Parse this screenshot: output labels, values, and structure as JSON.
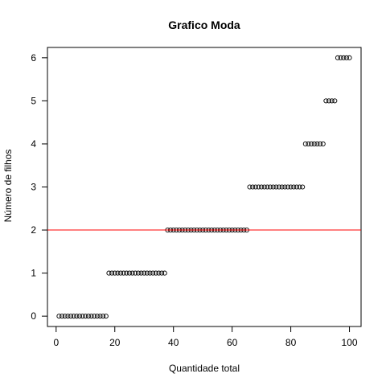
{
  "chart_data": {
    "type": "scatter",
    "title": "Grafico Moda",
    "xlabel": "Quantidade total",
    "ylabel": "Número de filhos",
    "xlim": [
      -2.96,
      103.96
    ],
    "ylim": [
      -0.24,
      6.24
    ],
    "x_ticks": [
      0,
      20,
      40,
      60,
      80,
      100
    ],
    "y_ticks": [
      0,
      1,
      2,
      3,
      4,
      5,
      6
    ],
    "x_tick_labels": [
      "0",
      "20",
      "40",
      "60",
      "80",
      "100"
    ],
    "y_tick_labels": [
      "0",
      "1",
      "2",
      "3",
      "4",
      "5",
      "6"
    ],
    "series": [
      {
        "x": [
          1,
          2,
          3,
          4,
          5,
          6,
          7,
          8,
          9,
          10,
          11,
          12,
          13,
          14,
          15,
          16,
          17,
          18,
          19,
          20,
          21,
          22,
          23,
          24,
          25,
          26,
          27,
          28,
          29,
          30,
          31,
          32,
          33,
          34,
          35,
          36,
          37,
          38,
          39,
          40,
          41,
          42,
          43,
          44,
          45,
          46,
          47,
          48,
          49,
          50,
          51,
          52,
          53,
          54,
          55,
          56,
          57,
          58,
          59,
          60,
          61,
          62,
          63,
          64,
          65,
          66,
          67,
          68,
          69,
          70,
          71,
          72,
          73,
          74,
          75,
          76,
          77,
          78,
          79,
          80,
          81,
          82,
          83,
          84,
          85,
          86,
          87,
          88,
          89,
          90,
          91,
          92,
          93,
          94,
          95,
          96,
          97,
          98,
          99,
          100
        ],
        "y": [
          0,
          0,
          0,
          0,
          0,
          0,
          0,
          0,
          0,
          0,
          0,
          0,
          0,
          0,
          0,
          0,
          0,
          1,
          1,
          1,
          1,
          1,
          1,
          1,
          1,
          1,
          1,
          1,
          1,
          1,
          1,
          1,
          1,
          1,
          1,
          1,
          1,
          2,
          2,
          2,
          2,
          2,
          2,
          2,
          2,
          2,
          2,
          2,
          2,
          2,
          2,
          2,
          2,
          2,
          2,
          2,
          2,
          2,
          2,
          2,
          2,
          2,
          2,
          2,
          2,
          3,
          3,
          3,
          3,
          3,
          3,
          3,
          3,
          3,
          3,
          3,
          3,
          3,
          3,
          3,
          3,
          3,
          3,
          3,
          4,
          4,
          4,
          4,
          4,
          4,
          4,
          5,
          5,
          5,
          5,
          6,
          6,
          6,
          6,
          6
        ],
        "marker": "open-circle",
        "color": "#000000"
      }
    ],
    "reference_lines": [
      {
        "orientation": "horizontal",
        "y": 2,
        "color": "#ff0000"
      }
    ],
    "grid": false,
    "legend": "none"
  }
}
